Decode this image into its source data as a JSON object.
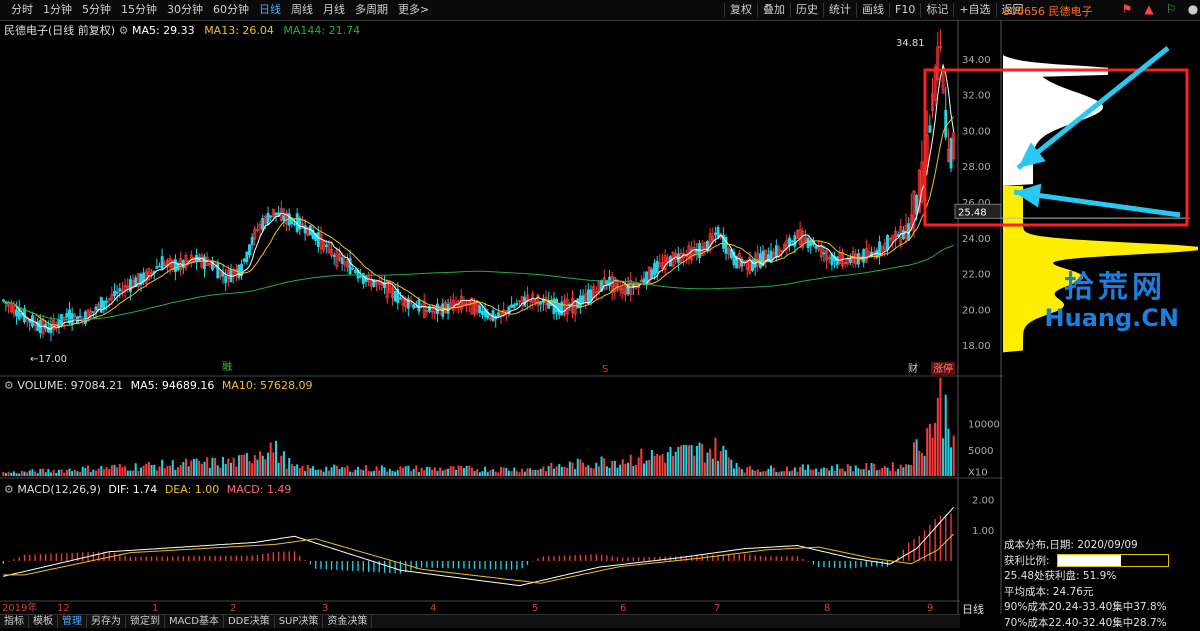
{
  "toolbar": {
    "tabs": [
      "分时",
      "1分钟",
      "5分钟",
      "15分钟",
      "30分钟",
      "60分钟",
      "日线",
      "周线",
      "月线",
      "多周期",
      "更多>"
    ],
    "active_tab": "日线",
    "right_buttons": [
      "复权",
      "叠加",
      "历史",
      "统计",
      "画线",
      "F10",
      "标记",
      "+自选",
      "返回"
    ],
    "symbol": "300656 民德电子"
  },
  "price_panel": {
    "title": "民德电子(日线 前复权)",
    "ma5_label": "MA5: 29.33",
    "ma13_label": "MA13: 26.04",
    "ma144_label": "MA144: 21.74",
    "high_label": "34.81",
    "low_label": "17.00",
    "current_label": "25.48",
    "yaxis": [
      "34.00",
      "32.00",
      "30.00",
      "28.00",
      "26.00",
      "24.00",
      "22.00",
      "20.00",
      "18.00"
    ],
    "marker_a": "融",
    "marker_b": "S",
    "marker_c": "财",
    "marker_d": "涨停"
  },
  "volume_panel": {
    "volume_label": "VOLUME: 97084.21",
    "ma5_label": "MA5: 94689.16",
    "ma10_label": "MA10: 57628.09",
    "yaxis": [
      "10000",
      "5000",
      "X10"
    ]
  },
  "macd_panel": {
    "title": "MACD(12,26,9)",
    "dif_label": "DIF: 1.74",
    "dea_label": "DEA: 1.00",
    "macd_label": "MACD: 1.49",
    "yaxis": [
      "2.00",
      "1.00"
    ]
  },
  "xaxis": {
    "labels": [
      "2019年",
      "12",
      "1",
      "2",
      "3",
      "4",
      "5",
      "6",
      "7",
      "8",
      "9"
    ]
  },
  "watermark": {
    "line1": "拾荒网",
    "line2": "Huang.CN"
  },
  "cost_info": {
    "date_line": "成本分布,日期: 2020/09/09",
    "profit_label": "获利比例:",
    "profit_value": "57.8%",
    "profit_fraction": 0.578,
    "line3": "25.48处获利盘: 51.9%",
    "line4": "平均成本: 24.76元",
    "line5": "90%成本20.24-33.40集中37.8%",
    "line6": "70%成本22.40-32.40集中28.7%"
  },
  "bottom_tabs": [
    "指标",
    "模板",
    "管理",
    "另存为",
    "锁定到",
    "MACD基本",
    "DDE决策",
    "SUP决策",
    "资金决策"
  ],
  "bottom_active": "管理",
  "period_label": "日线",
  "colors": {
    "up": "#ff3a3a",
    "down": "#22d4e8",
    "ma5": "#ffffff",
    "ma13": "#f0c020",
    "ma144": "#20b040",
    "annotation": "#ff2020",
    "arrow": "#28c8f0",
    "chip_up": "#ffffff",
    "chip_down": "#ffee00"
  },
  "chart_data": {
    "type": "candlestick",
    "ylim": [
      16.5,
      35.5
    ],
    "anchors": [
      [
        0,
        20.5
      ],
      [
        6,
        19.8
      ],
      [
        12,
        19.2
      ],
      [
        18,
        18.9
      ],
      [
        24,
        19.6
      ],
      [
        30,
        19.5
      ],
      [
        36,
        20.1
      ],
      [
        42,
        20.8
      ],
      [
        48,
        21.4
      ],
      [
        54,
        21.8
      ],
      [
        60,
        22.6
      ],
      [
        66,
        22.4
      ],
      [
        72,
        22.8
      ],
      [
        78,
        22.6
      ],
      [
        84,
        21.8
      ],
      [
        90,
        22.3
      ],
      [
        96,
        24.5
      ],
      [
        102,
        25.4
      ],
      [
        108,
        25.0
      ],
      [
        114,
        24.6
      ],
      [
        120,
        23.8
      ],
      [
        126,
        22.9
      ],
      [
        132,
        22.3
      ],
      [
        138,
        21.6
      ],
      [
        144,
        21.3
      ],
      [
        150,
        20.6
      ],
      [
        156,
        20.2
      ],
      [
        162,
        19.9
      ],
      [
        168,
        20.1
      ],
      [
        174,
        20.4
      ],
      [
        180,
        20.0
      ],
      [
        186,
        19.5
      ],
      [
        192,
        20.1
      ],
      [
        198,
        20.6
      ],
      [
        204,
        20.4
      ],
      [
        210,
        20.1
      ],
      [
        216,
        20.2
      ],
      [
        222,
        20.8
      ],
      [
        228,
        21.6
      ],
      [
        234,
        21.1
      ],
      [
        240,
        21.4
      ],
      [
        246,
        22.2
      ],
      [
        252,
        22.8
      ],
      [
        258,
        23.1
      ],
      [
        264,
        23.3
      ],
      [
        270,
        24.3
      ],
      [
        276,
        22.8
      ],
      [
        282,
        22.5
      ],
      [
        288,
        22.9
      ],
      [
        294,
        23.3
      ],
      [
        300,
        24.1
      ],
      [
        306,
        23.7
      ],
      [
        312,
        22.9
      ],
      [
        318,
        22.7
      ],
      [
        324,
        22.9
      ],
      [
        330,
        23.2
      ],
      [
        336,
        24.0
      ],
      [
        342,
        24.4
      ],
      [
        345,
        26.0
      ],
      [
        348,
        27.5
      ],
      [
        351,
        31.5
      ],
      [
        354,
        34.6
      ],
      [
        357,
        28.5
      ],
      [
        359,
        29.0
      ]
    ],
    "volume_anchors": [
      [
        0,
        600
      ],
      [
        90,
        2800
      ],
      [
        100,
        6000
      ],
      [
        110,
        1500
      ],
      [
        200,
        1300
      ],
      [
        270,
        5200
      ],
      [
        280,
        1300
      ],
      [
        340,
        1800
      ],
      [
        350,
        9000
      ],
      [
        354,
        14000
      ],
      [
        359,
        9700
      ]
    ],
    "volume_ylim": [
      0,
      16000
    ],
    "macd_anchors": [
      [
        0,
        -0.5
      ],
      [
        40,
        0.3
      ],
      [
        95,
        0.6
      ],
      [
        110,
        0.8
      ],
      [
        150,
        -0.3
      ],
      [
        195,
        -0.8
      ],
      [
        225,
        -0.2
      ],
      [
        255,
        0.1
      ],
      [
        280,
        0.4
      ],
      [
        300,
        0.5
      ],
      [
        320,
        0.1
      ],
      [
        335,
        -0.1
      ],
      [
        345,
        0.4
      ],
      [
        359,
        1.74
      ]
    ],
    "macd_ylim": [
      -1.2,
      2.3
    ],
    "series_count": 360
  }
}
